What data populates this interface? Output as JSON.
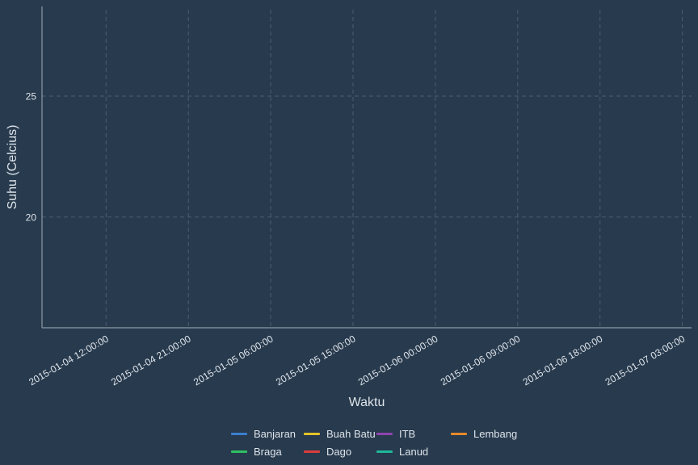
{
  "chart_data": {
    "type": "line",
    "xlabel": "Waktu",
    "ylabel": "Suhu (Celcius)",
    "x_ticks": [
      "2015-01-04 12:00:00",
      "2015-01-04 21:00:00",
      "2015-01-05 06:00:00",
      "2015-01-05 15:00:00",
      "2015-01-06 00:00:00",
      "2015-01-06 09:00:00",
      "2015-01-06 18:00:00",
      "2015-01-07 03:00:00"
    ],
    "xlim": [
      "2015-01-04 05:00:00",
      "2015-01-07 04:00:00"
    ],
    "y_ticks": [
      20,
      25
    ],
    "ylim": [
      15.43,
      28.7
    ],
    "grid": true,
    "legend_position": "bottom",
    "series": [
      {
        "name": "Banjaran",
        "color": "#3b7fd0",
        "values": []
      },
      {
        "name": "Braga",
        "color": "#2ebf63",
        "values": []
      },
      {
        "name": "Buah Batu",
        "color": "#e6c229",
        "values": []
      },
      {
        "name": "Dago",
        "color": "#dc3c3c",
        "values": []
      },
      {
        "name": "ITB",
        "color": "#8e44ad",
        "values": []
      },
      {
        "name": "Lanud",
        "color": "#1eb89b",
        "values": []
      },
      {
        "name": "Lembang",
        "color": "#e6892b",
        "values": []
      }
    ]
  }
}
